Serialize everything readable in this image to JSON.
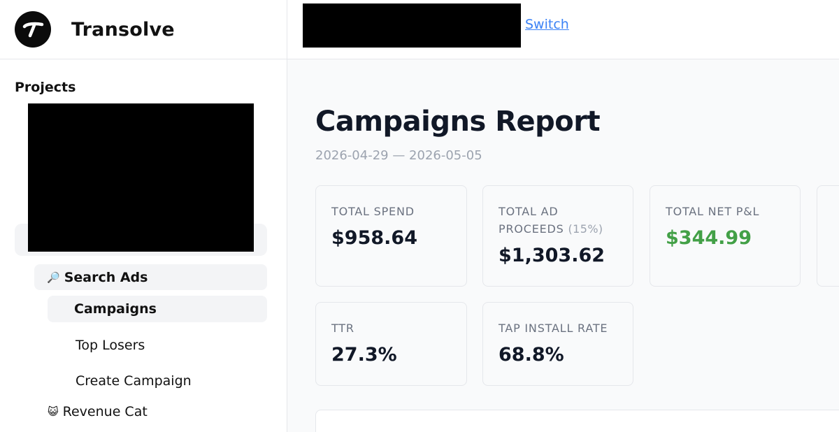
{
  "brand": {
    "name": "Transolve"
  },
  "sidebar": {
    "projects_title": "Projects",
    "items": [
      {
        "icon": "magnifier-icon",
        "emoji": "🔎",
        "label": "Search Ads"
      },
      {
        "label": "Campaigns"
      },
      {
        "label": "Top Losers"
      },
      {
        "label": "Create Campaign"
      },
      {
        "icon": "cat-icon",
        "emoji": "😺",
        "label": "Revenue Cat"
      }
    ]
  },
  "topbar": {
    "switch_label": "Switch"
  },
  "main": {
    "title": "Campaigns Report",
    "date_range": "2026-04-29 — 2026-05-05",
    "cards": [
      {
        "label": "TOTAL SPEND",
        "value": "$958.64"
      },
      {
        "label": "TOTAL AD PROCEEDS",
        "note": "(15%)",
        "value": "$1,303.62"
      },
      {
        "label": "TOTAL NET P&L",
        "value": "$344.99",
        "color": "#43a047"
      },
      {
        "label": "TTR",
        "value": "27.3%"
      },
      {
        "label": "TAP INSTALL RATE",
        "value": "68.8%"
      }
    ]
  }
}
